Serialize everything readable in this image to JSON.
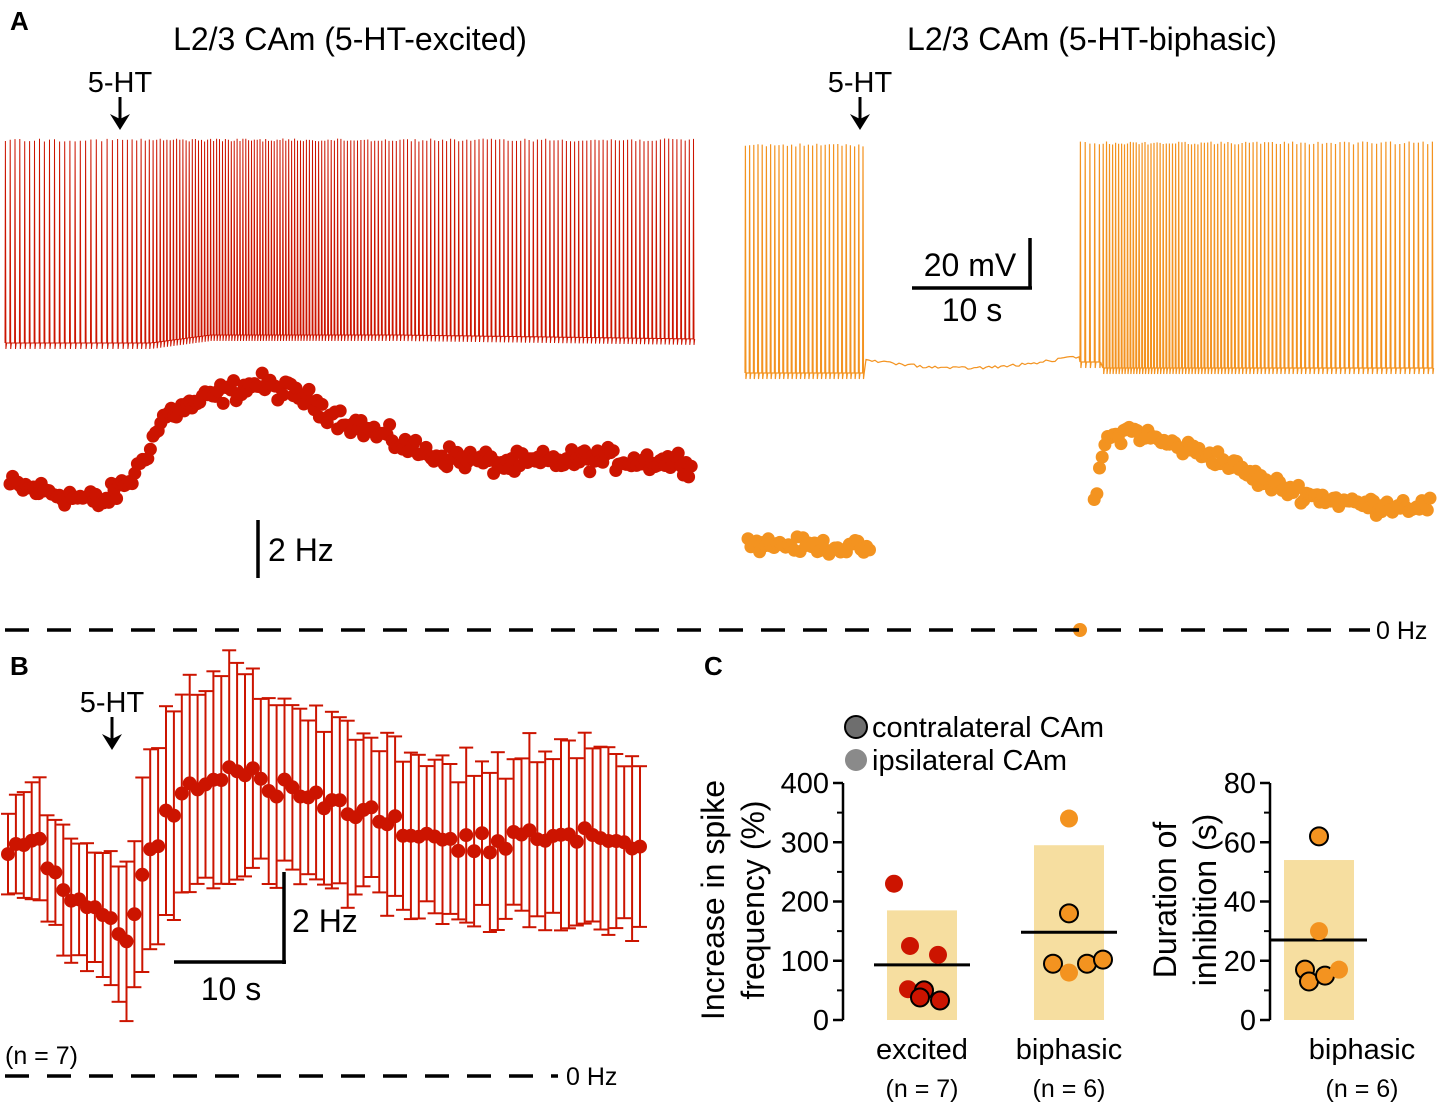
{
  "panels": {
    "a": "A",
    "b": "B",
    "c": "C"
  },
  "colors": {
    "excited": "#cc1400",
    "biphasic": "#f39320",
    "bar": "#f6dea0",
    "mean": "#000000"
  },
  "panel_a": {
    "left_title": "L2/3 CAm (5-HT-excited)",
    "right_title": "L2/3 CAm (5-HT-biphasic)",
    "drug_label": "5-HT",
    "scale_mv": "20 mV",
    "scale_s": "10 s",
    "scale_hz": "2 Hz",
    "zero_hz": "0 Hz"
  },
  "panel_b": {
    "drug_label": "5-HT",
    "scale_hz": "2 Hz",
    "scale_s": "10 s",
    "n_label": "(n = 7)",
    "zero_hz": "0 Hz"
  },
  "panel_c": {
    "legend": [
      "contralateral CAm",
      "ipsilateral CAm"
    ],
    "left_ylabel_1": "Increase in spike",
    "left_ylabel_2": "frequency (%)",
    "right_ylabel_1": "Duration of",
    "right_ylabel_2": "inhibition (s)",
    "groups": [
      "excited",
      "biphasic"
    ],
    "group_ns": [
      "(n = 7)",
      "(n = 6)"
    ],
    "right_group": "biphasic",
    "right_group_n": "(n = 6)"
  },
  "chart_data": [
    {
      "id": "A_left_trace",
      "type": "line",
      "title": "L2/3 CAm (5-HT-excited)",
      "xlabel": "time",
      "ylabel": "membrane potential",
      "scale_bars": {
        "voltage_mV": 20,
        "time_s": 10
      },
      "drug_onset": "5-HT",
      "spiking": "continuous; frequency increases after 5-HT"
    },
    {
      "id": "A_right_trace",
      "type": "line",
      "title": "L2/3 CAm (5-HT-biphasic)",
      "xlabel": "time",
      "ylabel": "membrane potential",
      "scale_bars": {
        "voltage_mV": 20,
        "time_s": 10
      },
      "drug_onset": "5-HT",
      "spiking": "spikes before 5-HT, silent pause, then spiking resumes"
    },
    {
      "id": "A_left_rate",
      "type": "scatter",
      "ylabel": "spike frequency (Hz)",
      "scale_bar_hz": 2,
      "profile_time_s": [
        0,
        9,
        12,
        15,
        20,
        24,
        28,
        32,
        40,
        48,
        56,
        66
      ],
      "profile_hz": [
        5.0,
        4.4,
        5.3,
        7.4,
        8.1,
        8.5,
        8.1,
        7.3,
        6.1,
        5.7,
        5.9,
        5.8
      ]
    },
    {
      "id": "A_right_rate",
      "type": "scatter",
      "ylabel": "spike frequency (Hz)",
      "scale_bar_hz": 2,
      "pre_time_s": [
        0,
        12
      ],
      "pre_hz": [
        3.0,
        2.8
      ],
      "pause_hz": 0,
      "profile_time_s": [
        33.5,
        34.5,
        37,
        40,
        45,
        50,
        55,
        60,
        66
      ],
      "profile_hz": [
        4.2,
        6.5,
        6.9,
        6.5,
        6.0,
        5.1,
        4.6,
        4.3,
        4.3
      ]
    },
    {
      "id": "B_mean_rate",
      "type": "line",
      "ylabel": "spike frequency (Hz)",
      "n": 7,
      "error_bars": "SEM",
      "scale_bars": {
        "frequency_hz": 2,
        "time_s": 10
      },
      "profile_time_s": [
        0,
        3,
        6,
        9,
        11,
        13,
        15,
        18,
        21,
        25,
        30,
        35,
        40,
        45,
        50,
        55,
        60
      ],
      "profile_hz": [
        5.0,
        5.1,
        3.9,
        3.7,
        2.9,
        4.6,
        5.9,
        6.5,
        6.9,
        6.3,
        6.1,
        5.6,
        5.4,
        5.1,
        5.4,
        5.3,
        5.1
      ],
      "profile_sem_hz": [
        1.0,
        1.2,
        1.3,
        1.4,
        1.5,
        2.0,
        2.3,
        2.4,
        2.3,
        2.0,
        1.9,
        1.8,
        1.7,
        1.7,
        1.9,
        1.9,
        1.9
      ]
    },
    {
      "id": "C_increase",
      "type": "bar",
      "categories": [
        "excited",
        "biphasic"
      ],
      "ylabel": "Increase in spike frequency (%)",
      "ylim": [
        0,
        400
      ],
      "yticks": [
        0,
        100,
        200,
        300,
        400
      ],
      "bar_values": [
        185,
        295
      ],
      "mean_lines": [
        93,
        148
      ],
      "points": {
        "excited": [
          {
            "v": 230,
            "contra": false
          },
          {
            "v": 125,
            "contra": false
          },
          {
            "v": 110,
            "contra": false
          },
          {
            "v": 52,
            "contra": false
          },
          {
            "v": 50,
            "contra": true
          },
          {
            "v": 33,
            "contra": true
          },
          {
            "v": 38,
            "contra": true
          }
        ],
        "biphasic": [
          {
            "v": 340,
            "contra": false
          },
          {
            "v": 180,
            "contra": true
          },
          {
            "v": 95,
            "contra": true
          },
          {
            "v": 80,
            "contra": false
          },
          {
            "v": 95,
            "contra": true
          },
          {
            "v": 102,
            "contra": true
          }
        ]
      }
    },
    {
      "id": "C_duration",
      "type": "bar",
      "categories": [
        "biphasic"
      ],
      "ylabel": "Duration of inhibition (s)",
      "ylim": [
        0,
        80
      ],
      "yticks": [
        0,
        20,
        40,
        60,
        80
      ],
      "bar_values": [
        54
      ],
      "mean_lines": [
        27
      ],
      "points": {
        "biphasic": [
          {
            "v": 62,
            "contra": true
          },
          {
            "v": 30,
            "contra": false
          },
          {
            "v": 17,
            "contra": true
          },
          {
            "v": 13,
            "contra": true
          },
          {
            "v": 15,
            "contra": true
          },
          {
            "v": 17,
            "contra": false
          }
        ]
      }
    }
  ]
}
